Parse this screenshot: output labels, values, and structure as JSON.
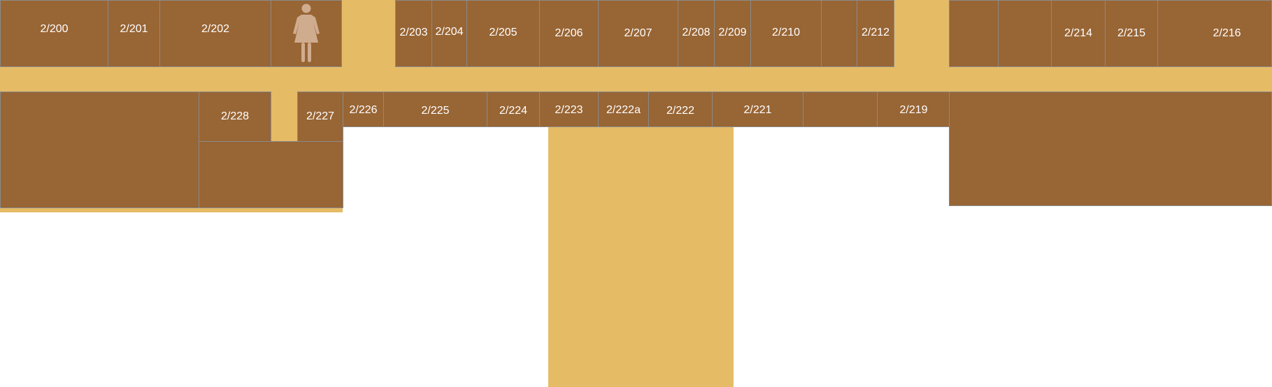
{
  "floor_plan": {
    "colors": {
      "room": "#986534",
      "corridor": "#e5bb66",
      "room_border": "#8a8a8a",
      "label": "#ffffff",
      "icon": "#d0ac8f"
    },
    "restroom_icon": "female-restroom-icon",
    "rooms": {
      "r200": "2/200",
      "r201": "2/201",
      "r202": "2/202",
      "r203": "2/203",
      "r204": "2/204",
      "r205": "2/205",
      "r206": "2/206",
      "r207": "2/207",
      "r208": "2/208",
      "r209": "2/209",
      "r210": "2/210",
      "r212": "2/212",
      "r214": "2/214",
      "r215": "2/215",
      "r216": "2/216",
      "r228": "2/228",
      "r227": "2/227",
      "r226": "2/226",
      "r225": "2/225",
      "r224": "2/224",
      "r223": "2/223",
      "r222a": "2/222a",
      "r222": "2/222",
      "r221": "2/221",
      "r219": "2/219"
    }
  }
}
